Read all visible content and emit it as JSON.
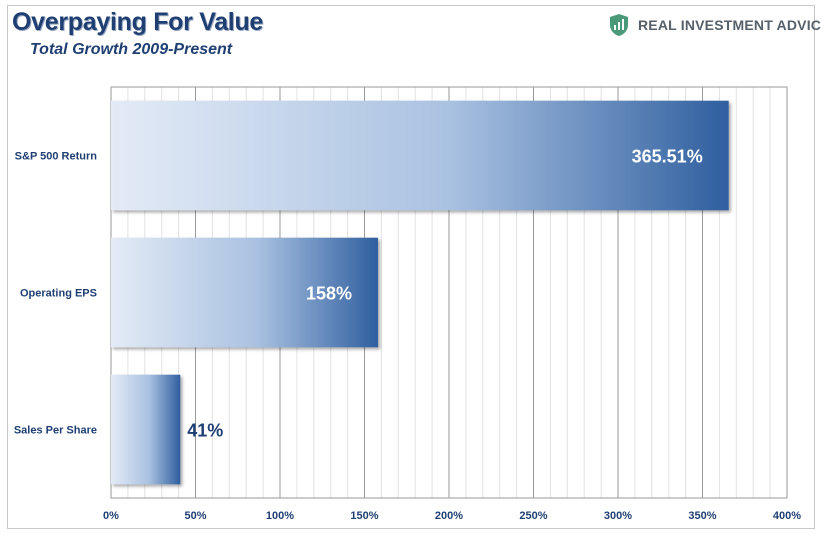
{
  "header": {
    "title": "Overpaying For Value",
    "subtitle": "Total Growth 2009-Present"
  },
  "brand": {
    "logo_text": "REAL INVESTMENT ADVICE",
    "accent_color": "#4a9a7a"
  },
  "colors": {
    "bar_light": "#e3ebf6",
    "bar_dark": "#2f5f9f",
    "label_text": "#1f3f73",
    "grid_major": "#9a9a9a",
    "grid_minor": "#e2e2e2"
  },
  "chart_data": {
    "type": "bar",
    "orientation": "horizontal",
    "categories": [
      "S&P 500 Return",
      "Operating EPS",
      "Sales Per Share"
    ],
    "values": [
      365.51,
      158,
      41
    ],
    "data_labels": [
      "365.51%",
      "158%",
      "41%"
    ],
    "x_ticks": [
      "0%",
      "50%",
      "100%",
      "150%",
      "200%",
      "250%",
      "300%",
      "350%",
      "400%"
    ],
    "xlim": [
      0,
      400
    ],
    "grid": true,
    "legend": "none",
    "title": "Overpaying For Value",
    "subtitle": "Total Growth 2009-Present"
  }
}
